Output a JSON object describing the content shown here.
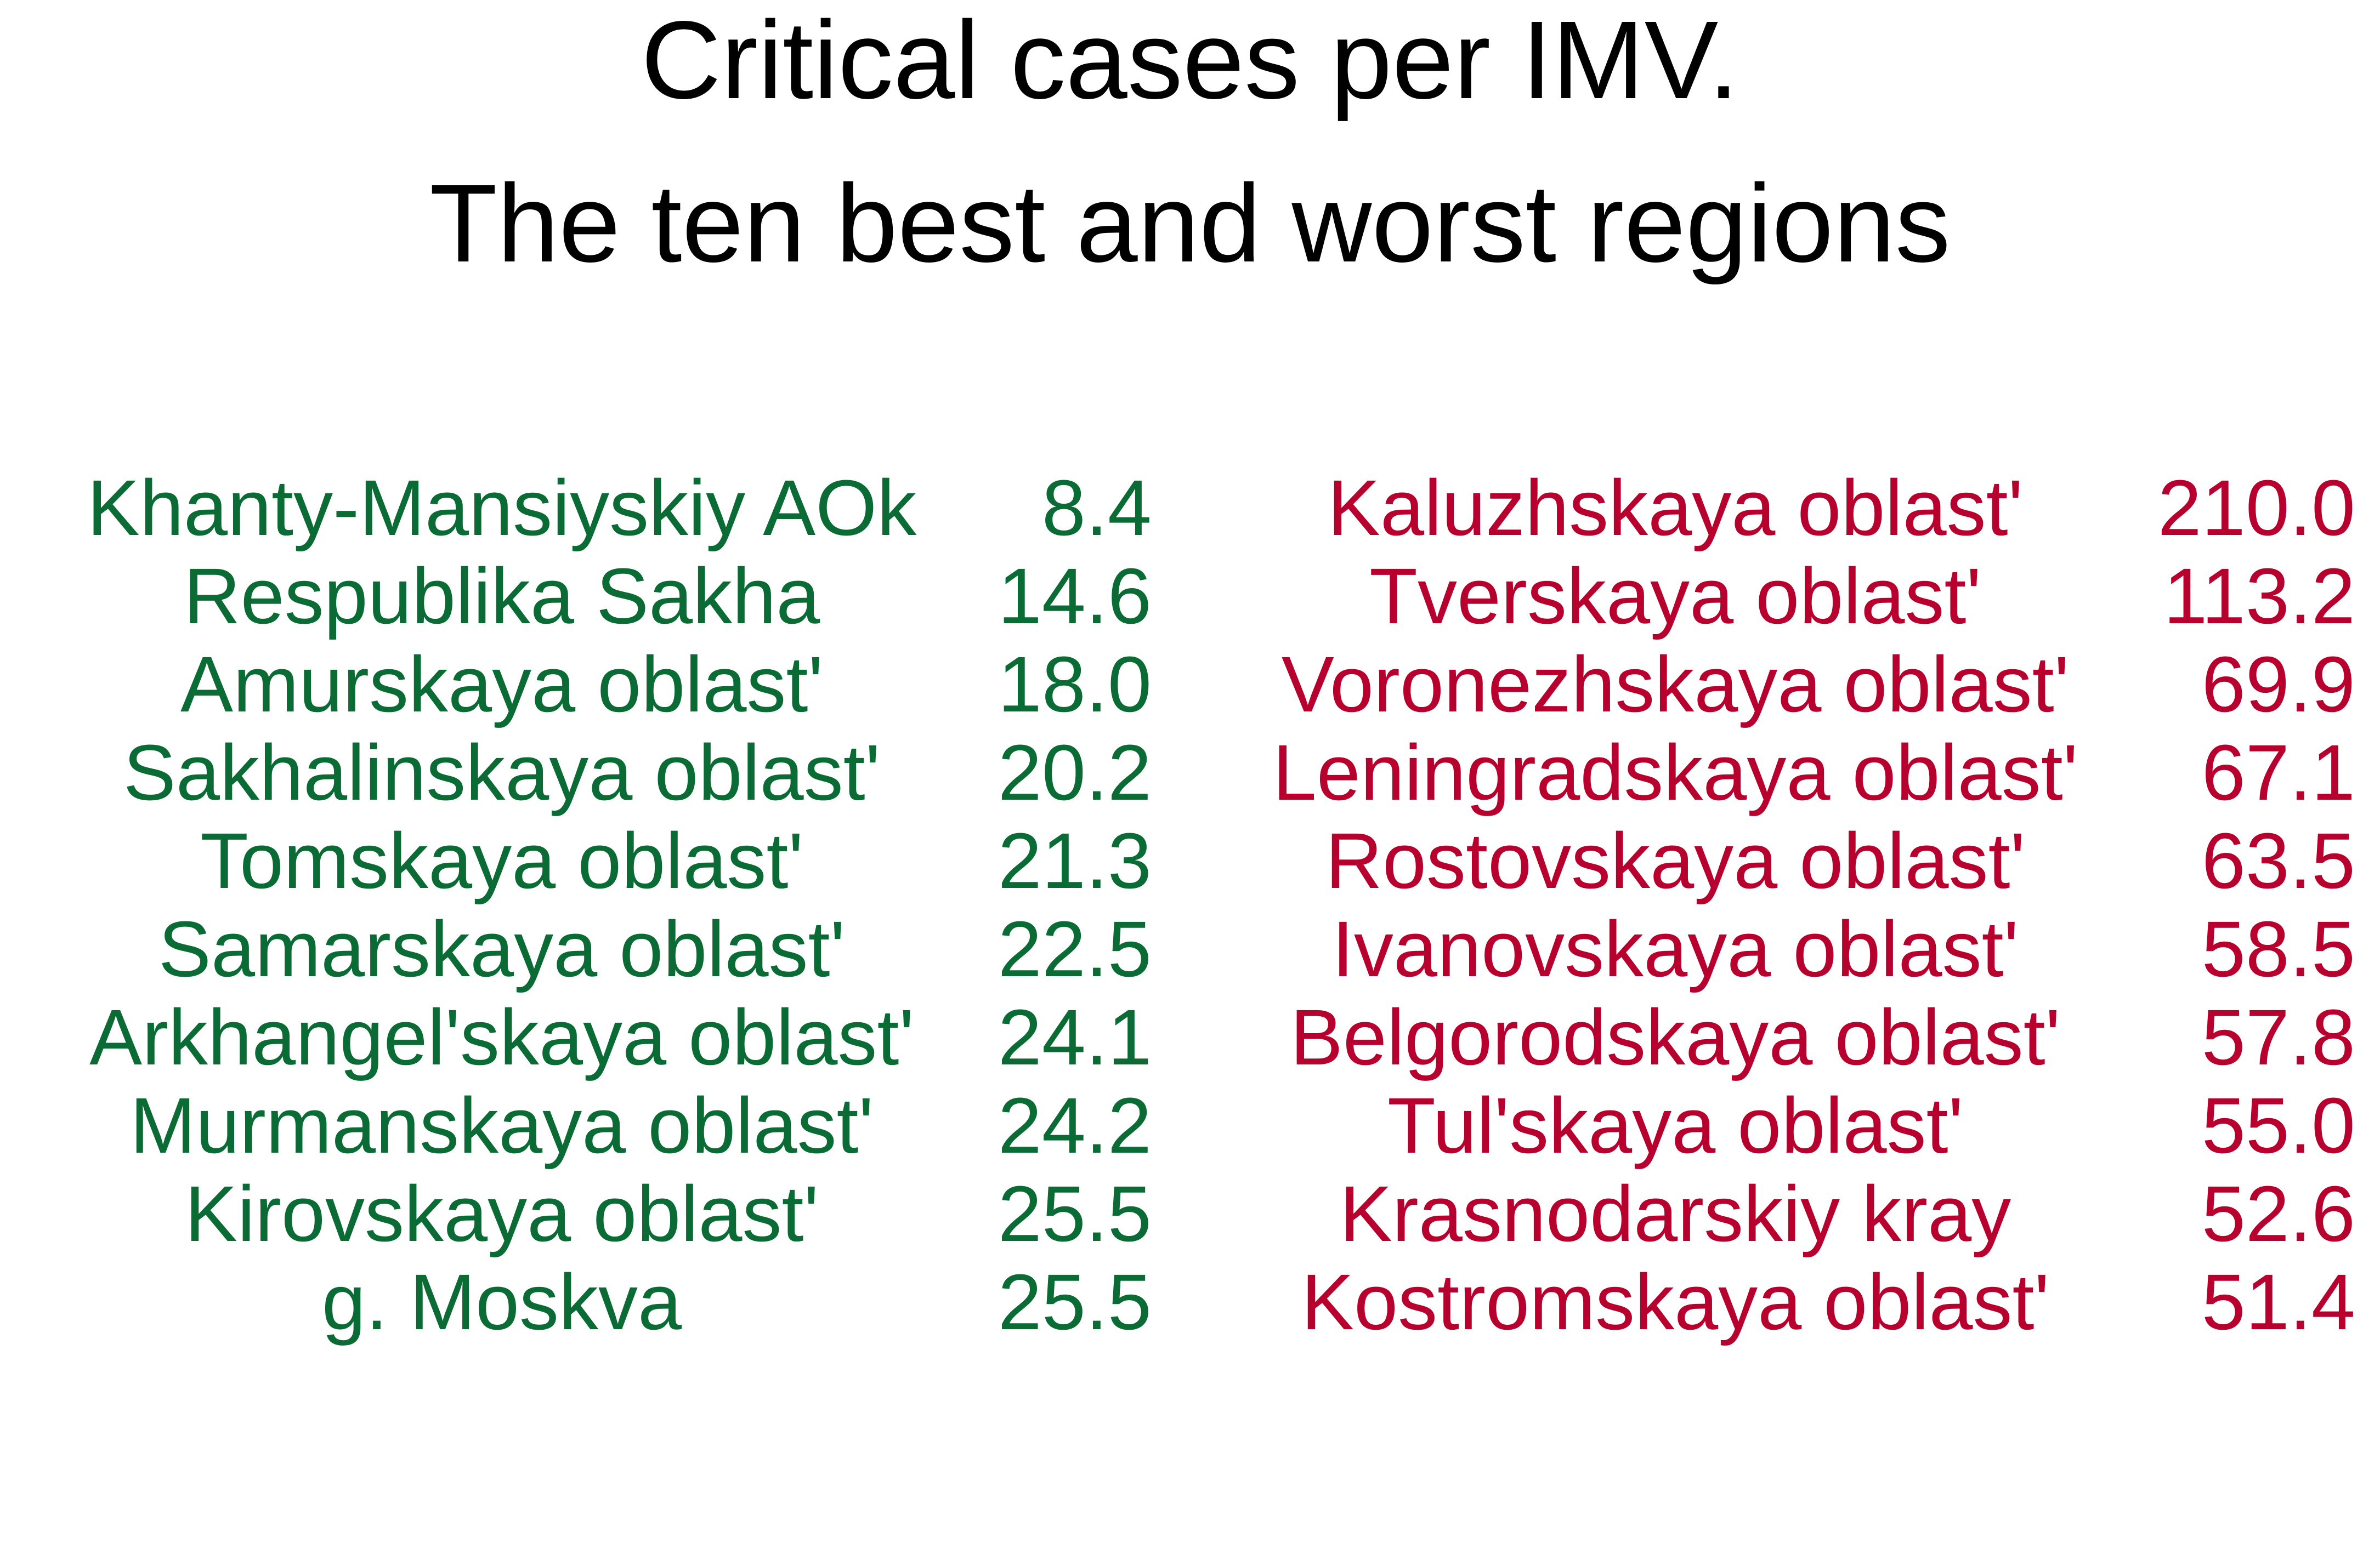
{
  "title": "Critical cases per IMV.",
  "subtitle": "The ten best and worst regions",
  "colors": {
    "best": "#0b6b35",
    "worst": "#b8002e",
    "title": "#000000"
  },
  "chart_data": {
    "type": "table",
    "title": "Critical cases per IMV.",
    "subtitle": "The ten best and worst regions",
    "groups": [
      {
        "rows": [
          {
            "region": "Khanty-Mansiyskiy AOk",
            "value": "8.4"
          },
          {
            "region": "Respublika Sakha",
            "value": "14.6"
          },
          {
            "region": "Amurskaya oblastʹ",
            "value": "18.0"
          },
          {
            "region": "Sakhalinskaya oblastʹ",
            "value": "20.2"
          },
          {
            "region": "Tomskaya oblastʹ",
            "value": "21.3"
          },
          {
            "region": "Samarskaya oblastʹ",
            "value": "22.5"
          },
          {
            "region": "Arkhangelʹskaya oblastʹ",
            "value": "24.1"
          },
          {
            "region": "Murmanskaya oblastʹ",
            "value": "24.2"
          },
          {
            "region": "Kirovskaya oblastʹ",
            "value": "25.5"
          },
          {
            "region": "g. Moskva",
            "value": "25.5"
          }
        ]
      },
      {
        "rows": [
          {
            "region": "Kaluzhskaya oblastʹ",
            "value": "210.0"
          },
          {
            "region": "Tverskaya oblastʹ",
            "value": "113.2"
          },
          {
            "region": "Voronezhskaya oblastʹ",
            "value": "69.9"
          },
          {
            "region": "Leningradskaya oblastʹ",
            "value": "67.1"
          },
          {
            "region": "Rostovskaya oblastʹ",
            "value": "63.5"
          },
          {
            "region": "Ivanovskaya oblastʹ",
            "value": "58.5"
          },
          {
            "region": "Belgorodskaya oblastʹ",
            "value": "57.8"
          },
          {
            "region": "Tulʹskaya oblastʹ",
            "value": "55.0"
          },
          {
            "region": "Krasnodarskiy kray",
            "value": "52.6"
          },
          {
            "region": "Kostromskaya oblastʹ",
            "value": "51.4"
          }
        ]
      }
    ]
  }
}
